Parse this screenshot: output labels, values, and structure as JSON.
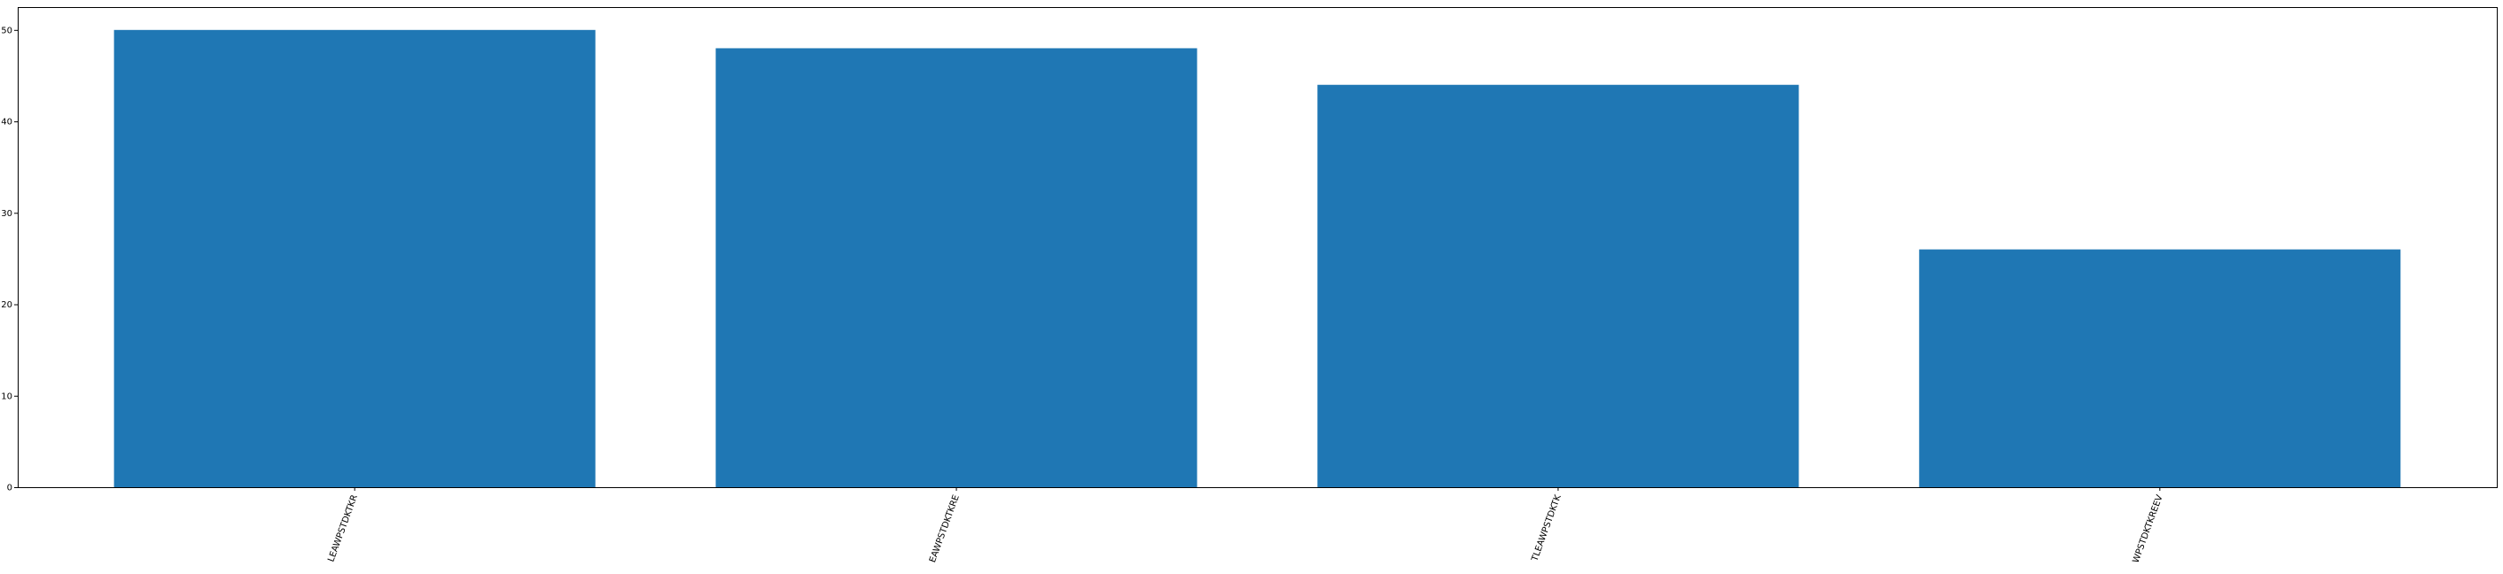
{
  "chart_data": {
    "type": "bar",
    "title": "",
    "xlabel": "",
    "ylabel": "",
    "categories": [
      "LEAWPSTDKTKR",
      "EAWPSTDKTKRE",
      "TLEAWPSTDKTK",
      "WPSTDKTKREEV"
    ],
    "values": [
      50,
      48,
      44,
      26
    ],
    "ylim": [
      0,
      52.5
    ],
    "yticks": [
      0,
      10,
      20,
      30,
      40,
      50
    ],
    "grid": false,
    "legend": "none",
    "bar_color": "#1f77b4",
    "xtick_rotation_deg": 70
  }
}
